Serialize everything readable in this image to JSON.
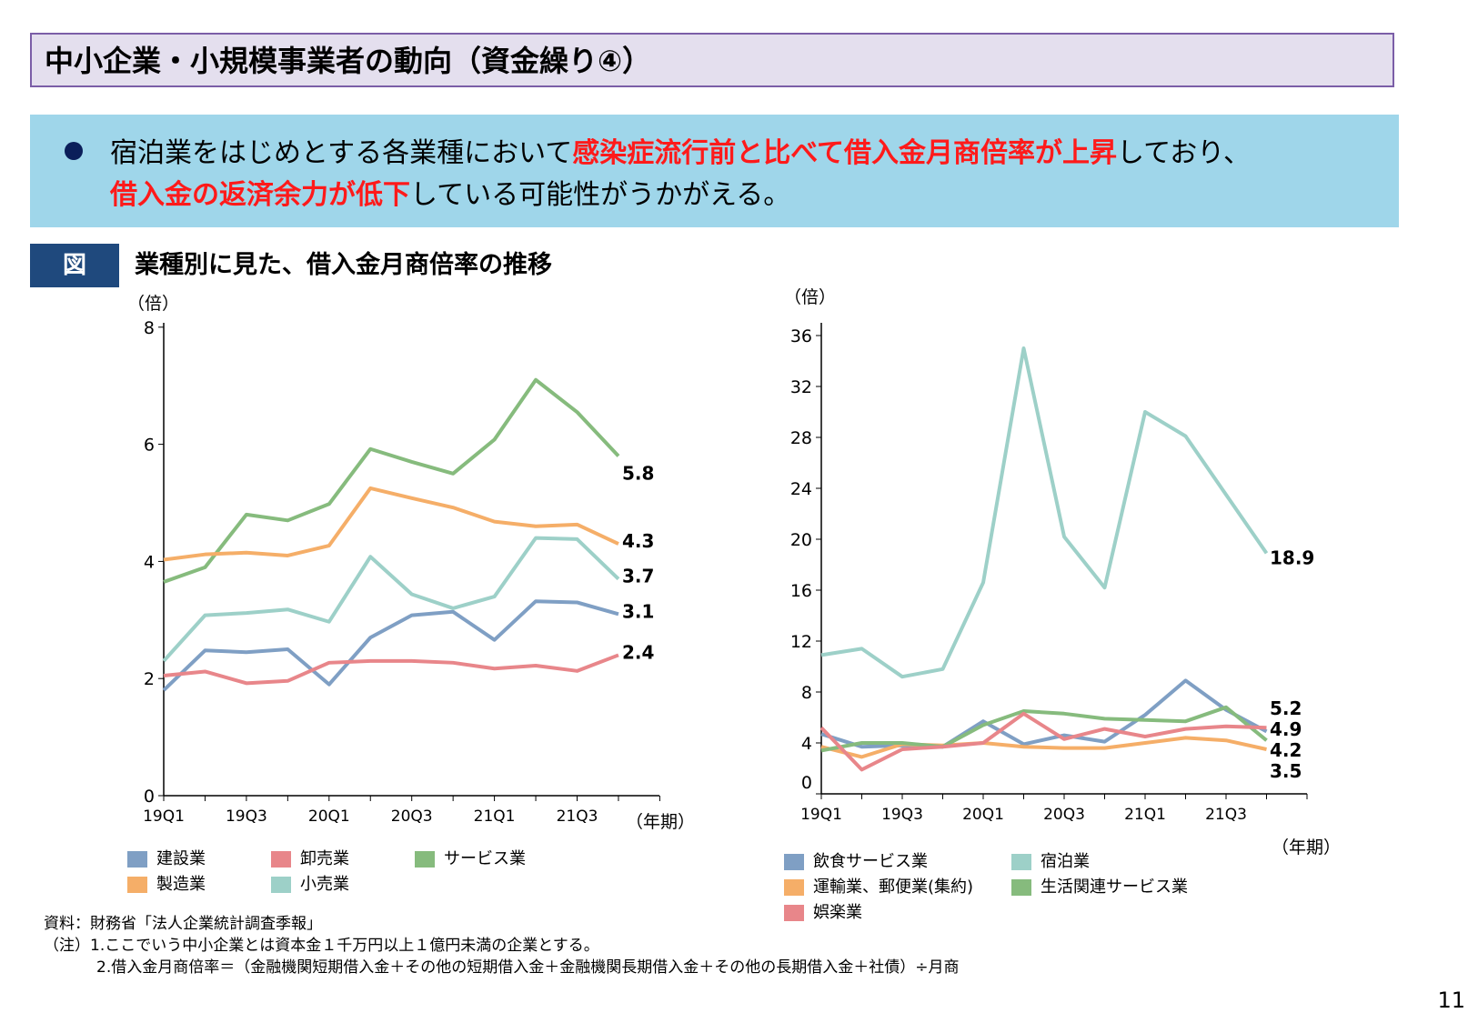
{
  "header": {
    "title": "中小企業・小規模事業者の動向（資金繰り④）"
  },
  "bullet": {
    "p1": "宿泊業をはじめとする各業種において",
    "r1": "感染症流行前と比べて借入金月商倍率が上昇",
    "p2": "しており、",
    "r2": "借入金の返済余力が低下",
    "p3": "している可能性がうかがえる。"
  },
  "figure": {
    "tag": "図",
    "title": "業種別に見た、借入金月商倍率の推移"
  },
  "chart_data": [
    {
      "type": "line",
      "ylabel": "（倍）",
      "xlabel": "（年期）",
      "ylim": [
        0,
        8
      ],
      "yticks": [
        0,
        2,
        4,
        6,
        8
      ],
      "x": [
        "19Q1",
        "19Q2",
        "19Q3",
        "19Q4",
        "20Q1",
        "20Q2",
        "20Q3",
        "20Q4",
        "21Q1",
        "21Q2",
        "21Q3",
        "21Q4"
      ],
      "xtick_labels": [
        "19Q1",
        "19Q3",
        "20Q1",
        "20Q3",
        "21Q1",
        "21Q3"
      ],
      "series": [
        {
          "name": "建設業",
          "color": "#7f9fc4",
          "values": [
            1.8,
            2.48,
            2.45,
            2.5,
            1.9,
            2.7,
            3.08,
            3.14,
            2.66,
            3.32,
            3.3,
            3.1
          ],
          "end_label": "3.1"
        },
        {
          "name": "卸売業",
          "color": "#e8868a",
          "values": [
            2.05,
            2.12,
            1.92,
            1.96,
            2.27,
            2.3,
            2.3,
            2.27,
            2.17,
            2.22,
            2.13,
            2.4
          ],
          "end_label": "2.4"
        },
        {
          "name": "サービス業",
          "color": "#86bb7d",
          "values": [
            3.65,
            3.9,
            4.8,
            4.7,
            4.98,
            5.92,
            5.7,
            5.5,
            6.08,
            7.1,
            6.55,
            5.8
          ],
          "end_label": "5.8"
        },
        {
          "name": "製造業",
          "color": "#f5ae68",
          "values": [
            4.03,
            4.12,
            4.15,
            4.1,
            4.27,
            5.25,
            5.08,
            4.92,
            4.68,
            4.6,
            4.63,
            4.3
          ],
          "end_label": "4.3"
        },
        {
          "name": "小売業",
          "color": "#9dd0c8",
          "values": [
            2.3,
            3.08,
            3.12,
            3.18,
            2.97,
            4.08,
            3.44,
            3.2,
            3.4,
            4.4,
            4.38,
            3.7
          ],
          "end_label": "3.7"
        }
      ]
    },
    {
      "type": "line",
      "ylabel": "（倍）",
      "xlabel": "（年期）",
      "ylim": [
        0,
        36
      ],
      "yticks": [
        0,
        4,
        8,
        12,
        16,
        20,
        24,
        28,
        32,
        36
      ],
      "x": [
        "19Q1",
        "19Q2",
        "19Q3",
        "19Q4",
        "20Q1",
        "20Q2",
        "20Q3",
        "20Q4",
        "21Q1",
        "21Q2",
        "21Q3",
        "21Q4"
      ],
      "xtick_labels": [
        "19Q1",
        "19Q3",
        "20Q1",
        "20Q3",
        "21Q1",
        "21Q3"
      ],
      "series": [
        {
          "name": "飲食サービス業",
          "color": "#7f9fc4",
          "values": [
            4.7,
            3.7,
            3.8,
            3.7,
            5.7,
            3.9,
            4.6,
            4.1,
            6.2,
            8.9,
            6.6,
            4.9
          ],
          "end_label": "4.9"
        },
        {
          "name": "宿泊業",
          "color": "#9dd0c8",
          "values": [
            10.9,
            11.4,
            9.2,
            9.8,
            16.6,
            35,
            20.2,
            16.2,
            30,
            28.1,
            23.5,
            18.9
          ],
          "end_label": "18.9"
        },
        {
          "name": "運輸業、郵便業(集約)",
          "color": "#f5ae68",
          "values": [
            3.7,
            2.9,
            3.9,
            3.8,
            4.0,
            3.7,
            3.6,
            3.6,
            4.0,
            4.4,
            4.2,
            3.5
          ],
          "end_label": "3.5"
        },
        {
          "name": "生活関連サービス業",
          "color": "#86bb7d",
          "values": [
            3.4,
            4.0,
            4.0,
            3.7,
            5.4,
            6.5,
            6.3,
            5.9,
            5.8,
            5.7,
            6.8,
            4.2
          ],
          "end_label": "4.2"
        },
        {
          "name": "娯楽業",
          "color": "#e8868a",
          "values": [
            5.2,
            1.9,
            3.5,
            3.7,
            4.0,
            6.3,
            4.3,
            5.1,
            4.5,
            5.1,
            5.3,
            5.2
          ],
          "end_label": "5.2"
        }
      ]
    }
  ],
  "notes": {
    "source": "資料：財務省「法人企業統計調査季報」",
    "n1": "（注）1.ここでいう中小企業とは資本金１千万円以上１億円未満の企業とする。",
    "n2": "2.借入金月商倍率＝（金融機関短期借入金＋その他の短期借入金＋金融機関長期借入金＋その他の長期借入金＋社債）÷月商"
  },
  "page_number": "11"
}
